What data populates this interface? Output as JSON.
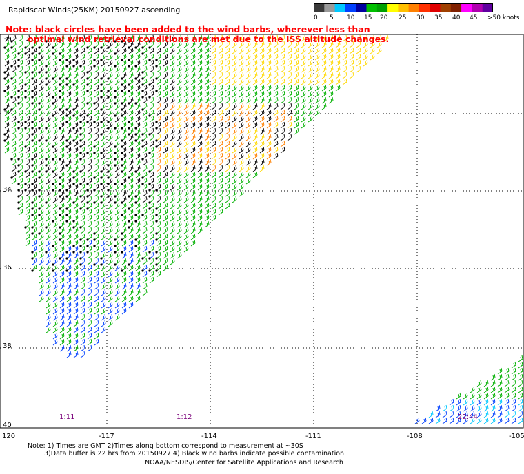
{
  "title": "Rapidscat Winds(25KM) 20150927 ascending",
  "note_line1": "Note: black circles have been added to the wind barbs, wherever less than",
  "note_line2": "optimal wind retrieval conditions are met due to the ISS altitude changes.",
  "legend": {
    "labels": [
      "0",
      "5",
      "10",
      "15",
      "20",
      "25",
      "30",
      "35",
      "40",
      "45",
      ">50 knots"
    ],
    "colors": [
      "#3a3a3a",
      "#9a9a9a",
      "#00c8ff",
      "#0040ff",
      "#0000a0",
      "#00c000",
      "#00a000",
      "#ffff00",
      "#ffc000",
      "#ff8000",
      "#ff3000",
      "#e00000",
      "#a04000",
      "#802000",
      "#ff00ff",
      "#b000b0",
      "#6000a0"
    ]
  },
  "latitude_labels": [
    "30",
    "32",
    "34",
    "36",
    "38",
    "40"
  ],
  "longitude_labels": [
    "120",
    "-117",
    "-114",
    "-111",
    "-108",
    "-105"
  ],
  "time_labels": [
    "1:11",
    "1:12",
    "22:44"
  ],
  "footer": {
    "line1": "Note: 1) Times are GMT 2)Times along bottom correspond to measurement at ~30S",
    "line2": "3)Data buffer is 22 hrs from 20150927 4) Black wind barbs indicate possible contamination",
    "line3": "NOAA/NESDIS/Center for Satellite Applications and Research"
  }
}
